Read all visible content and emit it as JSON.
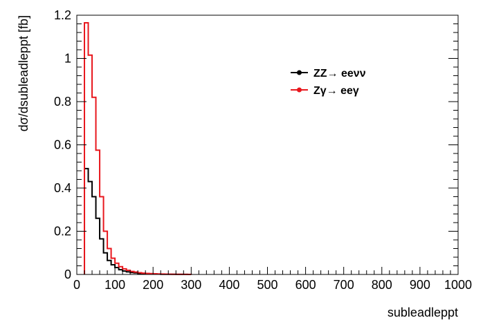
{
  "chart_data": {
    "type": "line",
    "title": "",
    "xlabel": "subleadleppt",
    "ylabel": "dσ/dsubleadleppt [fb]",
    "xlim": [
      0,
      1000
    ],
    "ylim": [
      0,
      1.2
    ],
    "x_ticks": [
      0,
      100,
      200,
      300,
      400,
      500,
      600,
      700,
      800,
      900,
      1000
    ],
    "x_tick_labels": [
      "0",
      "100",
      "200",
      "300",
      "400",
      "500",
      "600",
      "700",
      "800",
      "900",
      "1000"
    ],
    "y_ticks": [
      0,
      0.2,
      0.4,
      0.6,
      0.8,
      1.0,
      1.2
    ],
    "y_tick_labels": [
      "0",
      "0.2",
      "0.4",
      "0.6",
      "0.8",
      "1",
      "1.2"
    ],
    "grid": false,
    "legend_position": "top-right",
    "bin_width": 10,
    "bin_edges_start": 20,
    "series": [
      {
        "name": "ZZ→ eeνν",
        "color": "#000000",
        "values": [
          0.49,
          0.43,
          0.36,
          0.26,
          0.165,
          0.1,
          0.065,
          0.045,
          0.032,
          0.022,
          0.016,
          0.012,
          0.009,
          0.007,
          0.005,
          0.004,
          0.003,
          0.0025,
          0.002,
          0.0015,
          0.001,
          0.001,
          0.0008,
          0.0006,
          0.0005,
          0.0004,
          0.0003,
          0.0002
        ]
      },
      {
        "name": "Zγ→ eeγ",
        "color": "#e8161c",
        "values": [
          1.165,
          1.015,
          0.82,
          0.575,
          0.36,
          0.2,
          0.12,
          0.075,
          0.052,
          0.036,
          0.026,
          0.019,
          0.014,
          0.011,
          0.008,
          0.006,
          0.005,
          0.004,
          0.003,
          0.0025,
          0.002,
          0.0015,
          0.0012,
          0.001,
          0.0008,
          0.0006,
          0.0005,
          0.0004
        ]
      }
    ]
  }
}
